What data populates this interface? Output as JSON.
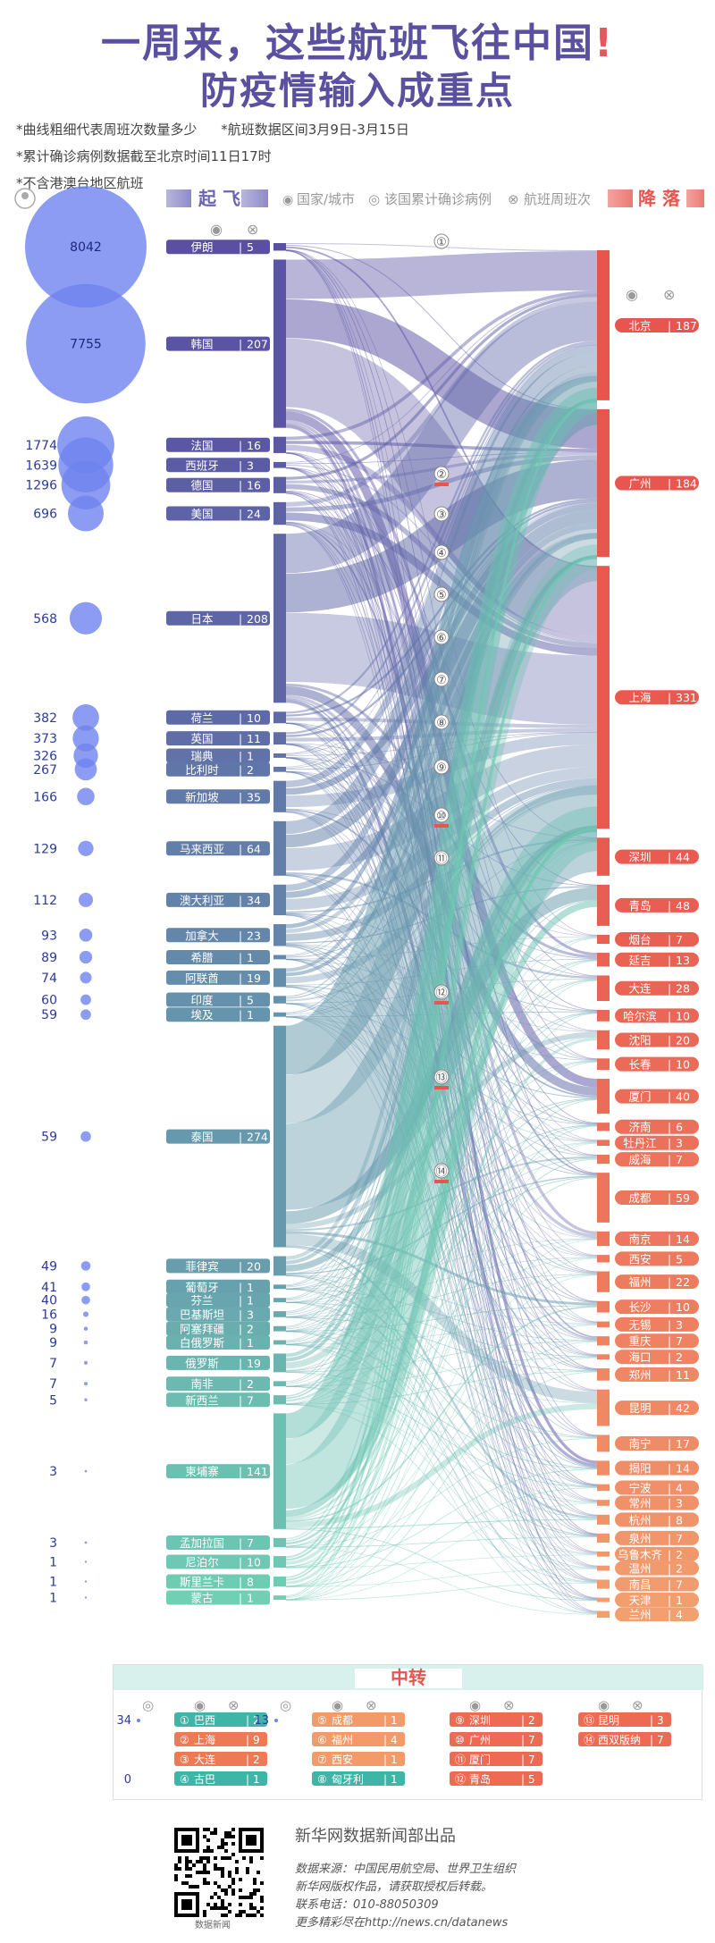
{
  "title_line1": "一周来，这些航班飞往中国",
  "title_bang": "!",
  "title_line2": "防疫情输入成重点",
  "notes": [
    "*曲线粗细代表周班次数量多少",
    "*航班数据区间3月9日-3月15日",
    "*累计确诊病例数据截至北京时间11日17时",
    "*不含港澳台地区航班"
  ],
  "legend": {
    "takeoff": "起 飞",
    "landing": "降 落",
    "country_city": "国家/城市",
    "cases": "该国累计确诊病例",
    "flights": "航班周班次"
  },
  "transit": {
    "title": "中转",
    "groups": [
      {
        "cases": "34",
        "items": [
          {
            "n": "①",
            "name": "巴西",
            "flights": "2"
          },
          {
            "n": "②",
            "name": "上海",
            "flights": "9"
          },
          {
            "n": "③",
            "name": "大连",
            "flights": "2"
          },
          {
            "n": "④",
            "name": "古巴",
            "flights": "1"
          }
        ],
        "cases2": "0"
      },
      {
        "cases": "13",
        "items": [
          {
            "n": "⑤",
            "name": "成都",
            "flights": "1"
          },
          {
            "n": "⑥",
            "name": "福州",
            "flights": "4"
          },
          {
            "n": "⑦",
            "name": "西安",
            "flights": "1"
          },
          {
            "n": "⑧",
            "name": "匈牙利",
            "flights": "1"
          }
        ]
      },
      {
        "items": [
          {
            "n": "⑨",
            "name": "深圳",
            "flights": "2"
          },
          {
            "n": "⑩",
            "name": "广州",
            "flights": "7"
          },
          {
            "n": "⑪",
            "name": "厦门",
            "flights": "7"
          },
          {
            "n": "⑫",
            "name": "青岛",
            "flights": "5"
          }
        ]
      },
      {
        "items": [
          {
            "n": "⑬",
            "name": "昆明",
            "flights": "3"
          },
          {
            "n": "⑭",
            "name": "西双版纳",
            "flights": "7"
          }
        ]
      }
    ]
  },
  "footer": {
    "producer": "新华网数据新闻部出品",
    "source": "数据来源：中国民用航空局、世界卫生组织",
    "copyright": "新华网版权作品，请获取授权后转载。",
    "phone": "联系电话：010-88050309",
    "more": "更多精彩尽在http://news.cn/datanews",
    "qr_caption": "数据新闻"
  },
  "chart_data": {
    "type": "sankey",
    "origins": [
      {
        "name": "伊朗",
        "flights": 5,
        "cases": 8042
      },
      {
        "name": "韩国",
        "flights": 207,
        "cases": 7755
      },
      {
        "name": "法国",
        "flights": 16,
        "cases": 1774
      },
      {
        "name": "西班牙",
        "flights": 3,
        "cases": 1639
      },
      {
        "name": "德国",
        "flights": 16,
        "cases": 1296
      },
      {
        "name": "美国",
        "flights": 24,
        "cases": 696
      },
      {
        "name": "日本",
        "flights": 208,
        "cases": 568
      },
      {
        "name": "荷兰",
        "flights": 10,
        "cases": 382
      },
      {
        "name": "英国",
        "flights": 11,
        "cases": 373
      },
      {
        "name": "瑞典",
        "flights": 1,
        "cases": 326
      },
      {
        "name": "比利时",
        "flights": 2,
        "cases": 267
      },
      {
        "name": "新加坡",
        "flights": 35,
        "cases": 166
      },
      {
        "name": "马来西亚",
        "flights": 64,
        "cases": 129
      },
      {
        "name": "澳大利亚",
        "flights": 34,
        "cases": 112
      },
      {
        "name": "加拿大",
        "flights": 23,
        "cases": 93
      },
      {
        "name": "希腊",
        "flights": 1,
        "cases": 89
      },
      {
        "name": "阿联酋",
        "flights": 19,
        "cases": 74
      },
      {
        "name": "印度",
        "flights": 5,
        "cases": 60
      },
      {
        "name": "埃及",
        "flights": 1,
        "cases": 59
      },
      {
        "name": "泰国",
        "flights": 274,
        "cases": 59
      },
      {
        "name": "菲律宾",
        "flights": 20,
        "cases": 49
      },
      {
        "name": "葡萄牙",
        "flights": 1,
        "cases": 41
      },
      {
        "name": "芬兰",
        "flights": 1,
        "cases": 40
      },
      {
        "name": "巴基斯坦",
        "flights": 3,
        "cases": 16
      },
      {
        "name": "阿塞拜疆",
        "flights": 2,
        "cases": 9
      },
      {
        "name": "白俄罗斯",
        "flights": 1,
        "cases": 9
      },
      {
        "name": "俄罗斯",
        "flights": 19,
        "cases": 7
      },
      {
        "name": "南非",
        "flights": 2,
        "cases": 7
      },
      {
        "name": "新西兰",
        "flights": 7,
        "cases": 5
      },
      {
        "name": "柬埔寨",
        "flights": 141,
        "cases": 3
      },
      {
        "name": "孟加拉国",
        "flights": 7,
        "cases": 3
      },
      {
        "name": "尼泊尔",
        "flights": 10,
        "cases": 1
      },
      {
        "name": "斯里兰卡",
        "flights": 8,
        "cases": 1
      },
      {
        "name": "蒙古",
        "flights": 1,
        "cases": 1
      }
    ],
    "destinations": [
      {
        "name": "北京",
        "flights": 187
      },
      {
        "name": "广州",
        "flights": 184
      },
      {
        "name": "上海",
        "flights": 331
      },
      {
        "name": "深圳",
        "flights": 44
      },
      {
        "name": "青岛",
        "flights": 48
      },
      {
        "name": "烟台",
        "flights": 7
      },
      {
        "name": "延吉",
        "flights": 13
      },
      {
        "name": "大连",
        "flights": 28
      },
      {
        "name": "哈尔滨",
        "flights": 10
      },
      {
        "name": "沈阳",
        "flights": 20
      },
      {
        "name": "长春",
        "flights": 10
      },
      {
        "name": "厦门",
        "flights": 40
      },
      {
        "name": "济南",
        "flights": 6
      },
      {
        "name": "牡丹江",
        "flights": 3
      },
      {
        "name": "威海",
        "flights": 7
      },
      {
        "name": "成都",
        "flights": 59
      },
      {
        "name": "南京",
        "flights": 14
      },
      {
        "name": "西安",
        "flights": 5
      },
      {
        "name": "福州",
        "flights": 22
      },
      {
        "name": "长沙",
        "flights": 10
      },
      {
        "name": "无锡",
        "flights": 3
      },
      {
        "name": "重庆",
        "flights": 7
      },
      {
        "name": "海口",
        "flights": 2
      },
      {
        "name": "郑州",
        "flights": 11
      },
      {
        "name": "昆明",
        "flights": 42
      },
      {
        "name": "南宁",
        "flights": 17
      },
      {
        "name": "揭阳",
        "flights": 14
      },
      {
        "name": "宁波",
        "flights": 4
      },
      {
        "name": "常州",
        "flights": 3
      },
      {
        "name": "杭州",
        "flights": 8
      },
      {
        "name": "泉州",
        "flights": 7
      },
      {
        "name": "乌鲁木齐",
        "flights": 2
      },
      {
        "name": "温州",
        "flights": 2
      },
      {
        "name": "南昌",
        "flights": 7
      },
      {
        "name": "天津",
        "flights": 1
      },
      {
        "name": "兰州",
        "flights": 4
      }
    ],
    "transit_markers": [
      "①",
      "②",
      "③",
      "④",
      "⑤",
      "⑥",
      "⑦",
      "⑧",
      "⑨",
      "⑩",
      "⑪",
      "⑫",
      "⑬",
      "⑭"
    ],
    "colors": {
      "origin_start": "#5a4fa3",
      "origin_end": "#6fd0b4",
      "dest": "#e8554e",
      "dest_light": "#f2a070"
    }
  }
}
